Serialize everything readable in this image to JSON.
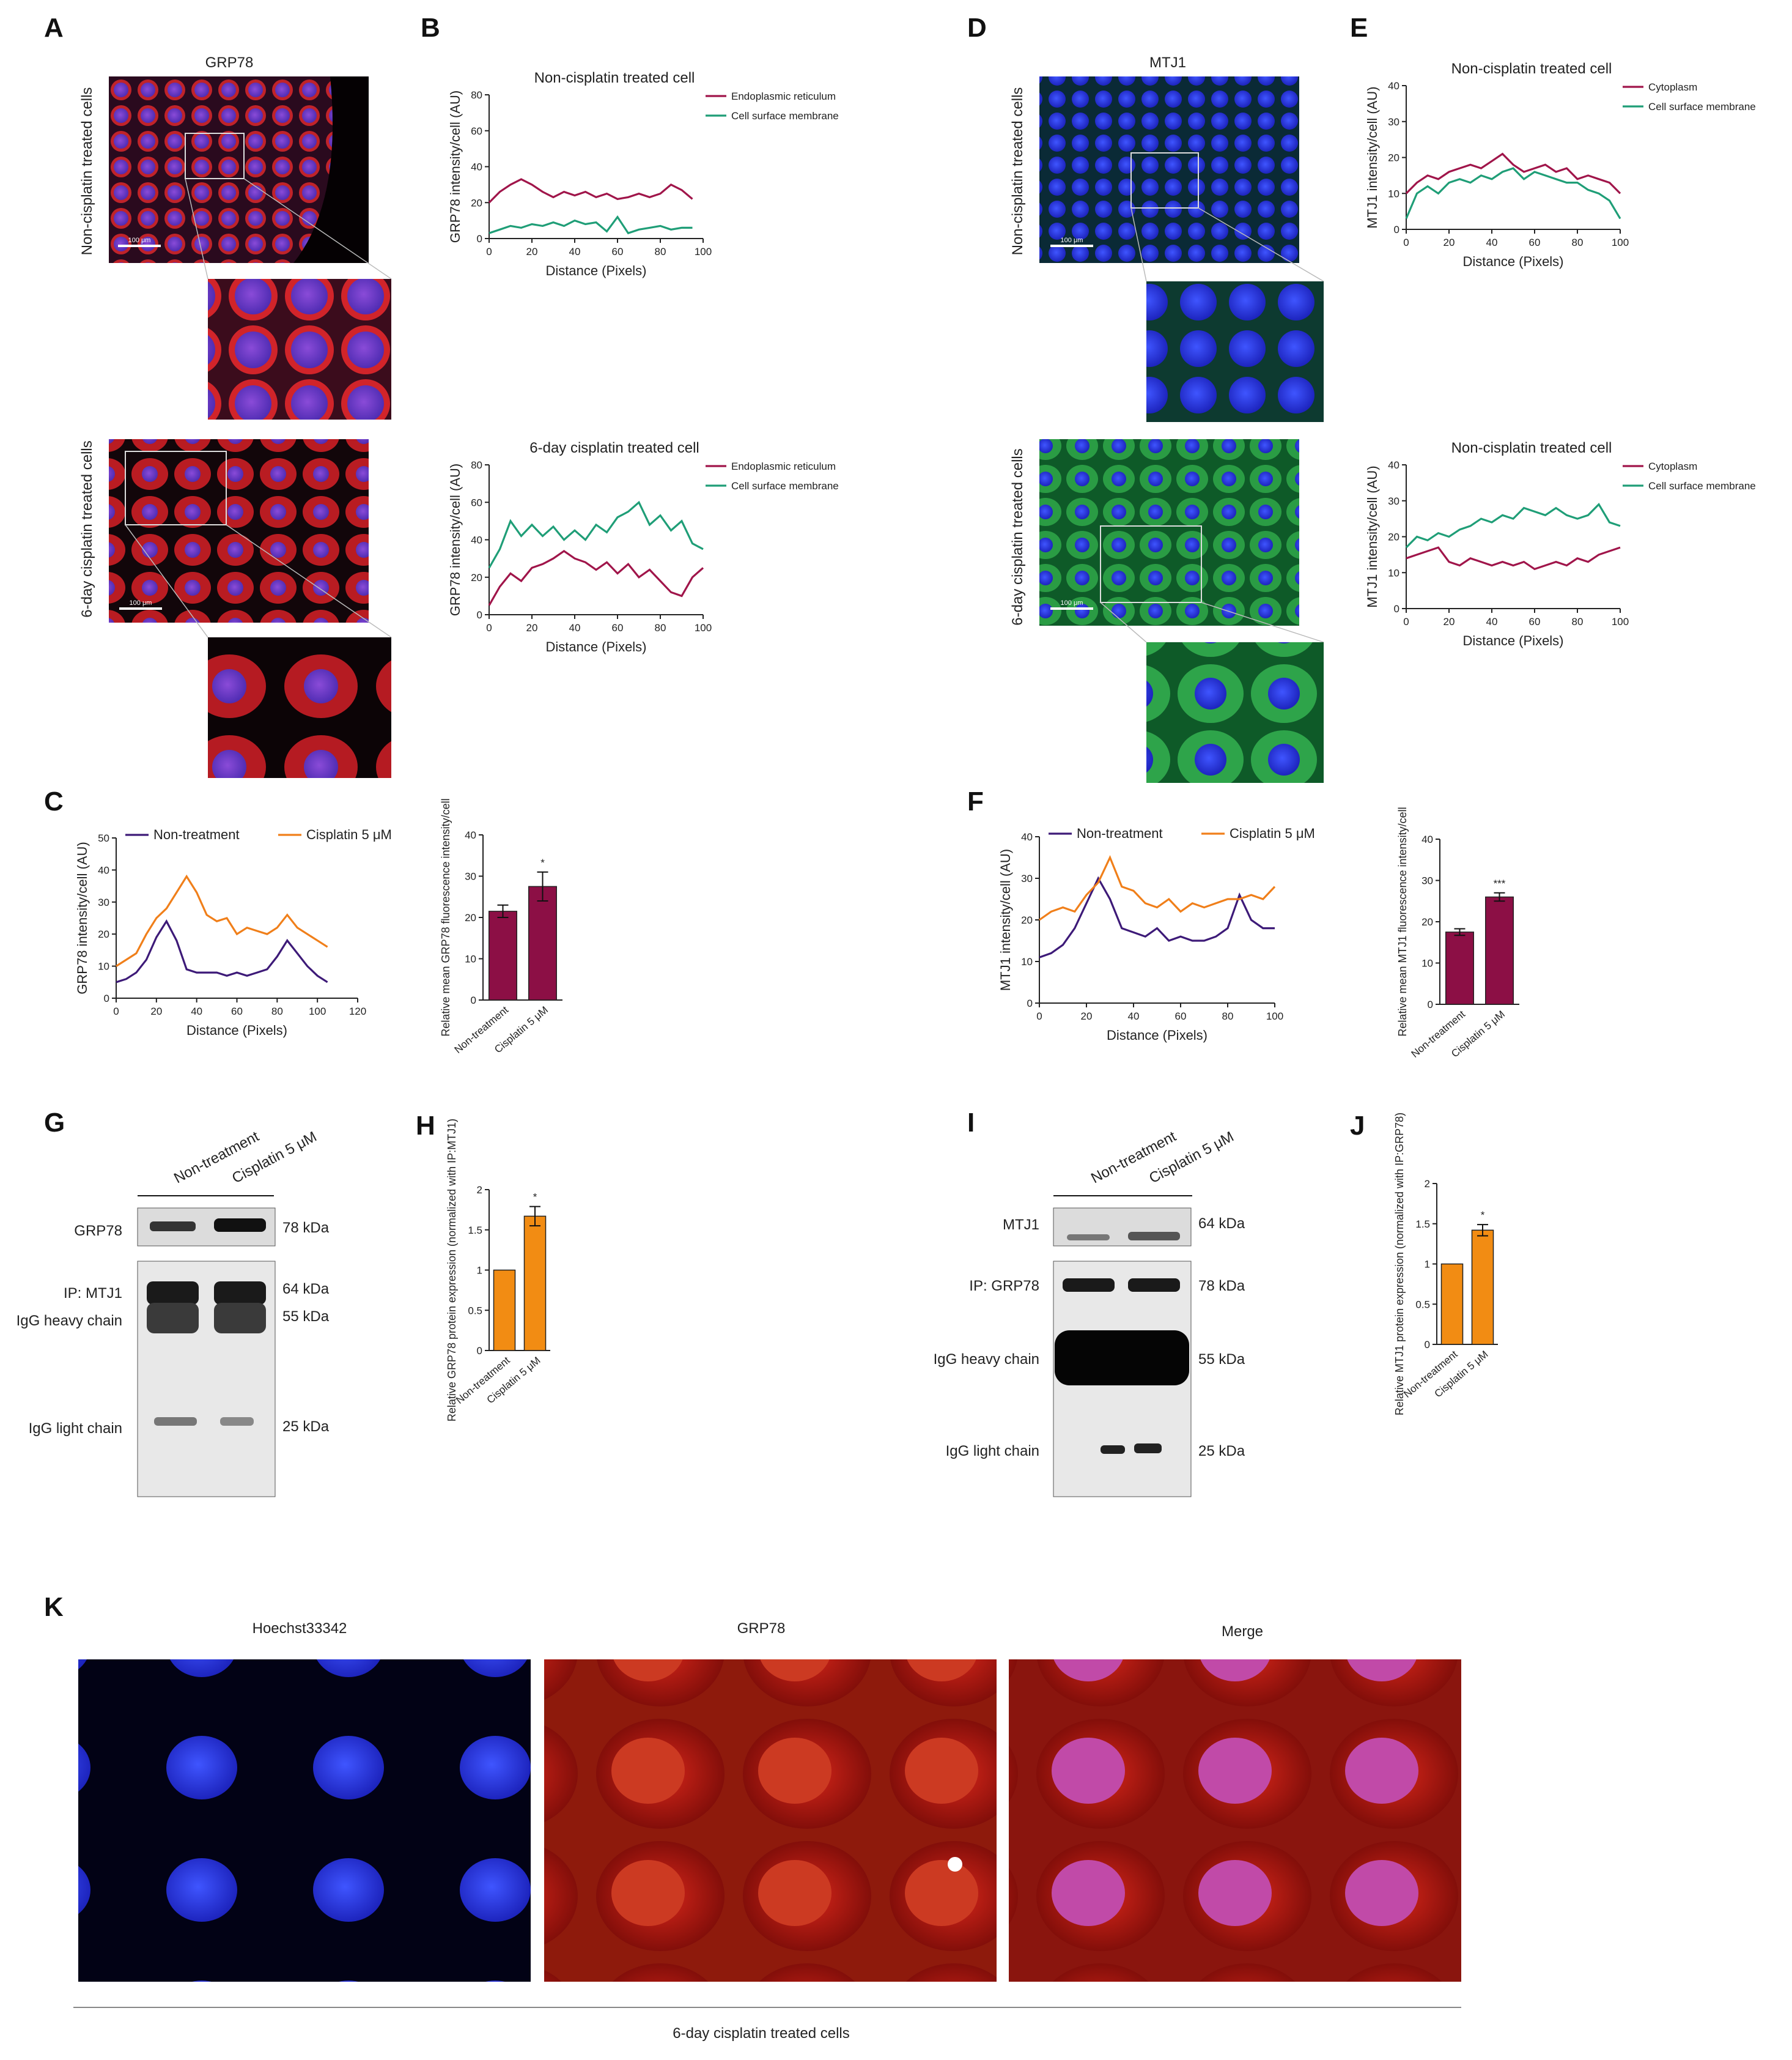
{
  "panel_letters": [
    "A",
    "B",
    "C",
    "D",
    "E",
    "F",
    "G",
    "H",
    "I",
    "J",
    "K"
  ],
  "colors": {
    "crimson": "#a0154a",
    "teal": "#1f9e77",
    "purple": "#3d1a78",
    "orange": "#f07f1a",
    "bar_crimson": "#8c0f45",
    "bar_orange": "#f28c13"
  },
  "panelA": {
    "title": "GRP78",
    "row1": "Non-cisplatin treated cells",
    "row2": "6-day cisplatin treated cells",
    "scalebar": "100 μm"
  },
  "panelD": {
    "title": "MTJ1",
    "row1": "Non-cisplatin treated cells",
    "row2": "6-day cisplatin treated cells",
    "scalebar": "100 μm"
  },
  "panelK": {
    "titles": [
      "Hoechst33342",
      "GRP78",
      "Merge"
    ],
    "caption": "6-day cisplatin treated cells"
  },
  "panelG": {
    "lanes": [
      "Non-treatment",
      "Cisplatin 5 μM"
    ],
    "left_labels": [
      "GRP78",
      "IP: MTJ1",
      "IgG heavy chain",
      "IgG light chain"
    ],
    "right_labels": [
      "78 kDa",
      "64 kDa",
      "55 kDa",
      "25 kDa"
    ]
  },
  "panelI": {
    "lanes": [
      "Non-treatment",
      "Cisplatin 5 μM"
    ],
    "left_labels": [
      "MTJ1",
      "IP: GRP78",
      "IgG heavy chain",
      "IgG light chain"
    ],
    "right_labels": [
      "64 kDa",
      "78 kDa",
      "55 kDa",
      "25 kDa"
    ]
  },
  "chart_data": [
    {
      "id": "B1",
      "type": "line",
      "title": "Non-cisplatin treated cell",
      "xlabel": "Distance (Pixels)",
      "ylabel": "GRP78 intensity/cell (AU)",
      "xlim": [
        0,
        100
      ],
      "ylim": [
        0,
        80
      ],
      "xticks": [
        0,
        20,
        40,
        60,
        80,
        100
      ],
      "yticks": [
        0,
        20,
        40,
        60,
        80
      ],
      "legend": "top-right",
      "series": [
        {
          "name": "Endoplasmic reticulum",
          "color": "#a0154a",
          "x": [
            0,
            5,
            10,
            15,
            20,
            25,
            30,
            35,
            40,
            45,
            50,
            55,
            60,
            65,
            70,
            75,
            80,
            85,
            90,
            95
          ],
          "y": [
            20,
            26,
            30,
            33,
            30,
            26,
            23,
            26,
            24,
            26,
            23,
            25,
            22,
            23,
            25,
            23,
            25,
            30,
            27,
            22
          ]
        },
        {
          "name": "Cell surface membrane",
          "color": "#1f9e77",
          "x": [
            0,
            5,
            10,
            15,
            20,
            25,
            30,
            35,
            40,
            45,
            50,
            55,
            60,
            65,
            70,
            75,
            80,
            85,
            90,
            95
          ],
          "y": [
            3,
            5,
            7,
            6,
            8,
            7,
            9,
            7,
            10,
            8,
            9,
            4,
            12,
            3,
            5,
            6,
            7,
            5,
            6,
            6
          ]
        }
      ]
    },
    {
      "id": "B2",
      "type": "line",
      "title": "6-day cisplatin treated cell",
      "xlabel": "Distance (Pixels)",
      "ylabel": "GRP78 intensity/cell (AU)",
      "xlim": [
        0,
        100
      ],
      "ylim": [
        0,
        80
      ],
      "xticks": [
        0,
        20,
        40,
        60,
        80,
        100
      ],
      "yticks": [
        0,
        20,
        40,
        60,
        80
      ],
      "legend": "top-right",
      "series": [
        {
          "name": "Endoplasmic reticulum",
          "color": "#a0154a",
          "x": [
            0,
            5,
            10,
            15,
            20,
            25,
            30,
            35,
            40,
            45,
            50,
            55,
            60,
            65,
            70,
            75,
            80,
            85,
            90,
            95,
            100
          ],
          "y": [
            5,
            15,
            22,
            18,
            25,
            27,
            30,
            34,
            30,
            28,
            24,
            28,
            22,
            27,
            20,
            24,
            18,
            12,
            10,
            20,
            25
          ]
        },
        {
          "name": "Cell surface membrane",
          "color": "#1f9e77",
          "x": [
            0,
            5,
            10,
            15,
            20,
            25,
            30,
            35,
            40,
            45,
            50,
            55,
            60,
            65,
            70,
            75,
            80,
            85,
            90,
            95,
            100
          ],
          "y": [
            25,
            35,
            50,
            42,
            48,
            42,
            47,
            40,
            45,
            40,
            48,
            44,
            52,
            55,
            60,
            48,
            53,
            45,
            50,
            38,
            35
          ]
        }
      ]
    },
    {
      "id": "C1",
      "type": "line",
      "xlabel": "Distance (Pixels)",
      "ylabel": "GRP78 intensity/cell (AU)",
      "xlim": [
        0,
        120
      ],
      "ylim": [
        0,
        50
      ],
      "xticks": [
        0,
        20,
        40,
        60,
        80,
        100,
        120
      ],
      "yticks": [
        0,
        10,
        20,
        30,
        40,
        50
      ],
      "legend": "top",
      "series": [
        {
          "name": "Non-treatment",
          "color": "#3d1a78",
          "x": [
            0,
            5,
            10,
            15,
            20,
            25,
            30,
            35,
            40,
            45,
            50,
            55,
            60,
            65,
            70,
            75,
            80,
            85,
            90,
            95,
            100,
            105
          ],
          "y": [
            5,
            6,
            8,
            12,
            19,
            24,
            18,
            9,
            8,
            8,
            8,
            7,
            8,
            7,
            8,
            9,
            13,
            18,
            14,
            10,
            7,
            5
          ]
        },
        {
          "name": "Cisplatin 5 μM",
          "color": "#f07f1a",
          "x": [
            0,
            5,
            10,
            15,
            20,
            25,
            30,
            35,
            40,
            45,
            50,
            55,
            60,
            65,
            70,
            75,
            80,
            85,
            90,
            95,
            100,
            105
          ],
          "y": [
            10,
            12,
            14,
            20,
            25,
            28,
            33,
            38,
            33,
            26,
            24,
            25,
            20,
            22,
            21,
            20,
            22,
            26,
            22,
            20,
            18,
            16
          ]
        }
      ]
    },
    {
      "id": "C2",
      "type": "bar",
      "ylabel": "Relative mean GRP78 fluorescence intensity/cell",
      "categories": [
        "Non-treatment",
        "Cisplatin 5 μM"
      ],
      "values": [
        21.5,
        27.5
      ],
      "errors": [
        1.5,
        3.5
      ],
      "significance": [
        "",
        "*"
      ],
      "ylim": [
        0,
        40
      ],
      "yticks": [
        0,
        10,
        20,
        30,
        40
      ],
      "color": "#8c0f45"
    },
    {
      "id": "E1",
      "type": "line",
      "title": "Non-cisplatin treated cell",
      "xlabel": "Distance (Pixels)",
      "ylabel": "MTJ1 intensity/cell (AU)",
      "xlim": [
        0,
        100
      ],
      "ylim": [
        0,
        40
      ],
      "xticks": [
        0,
        20,
        40,
        60,
        80,
        100
      ],
      "yticks": [
        0,
        10,
        20,
        30,
        40
      ],
      "legend": "top-right",
      "series": [
        {
          "name": "Cytoplasm",
          "color": "#a0154a",
          "x": [
            0,
            5,
            10,
            15,
            20,
            25,
            30,
            35,
            40,
            45,
            50,
            55,
            60,
            65,
            70,
            75,
            80,
            85,
            90,
            95,
            100
          ],
          "y": [
            10,
            13,
            15,
            14,
            16,
            17,
            18,
            17,
            19,
            21,
            18,
            16,
            17,
            18,
            16,
            17,
            14,
            15,
            14,
            13,
            10
          ]
        },
        {
          "name": "Cell surface membrane",
          "color": "#1f9e77",
          "x": [
            0,
            5,
            10,
            15,
            20,
            25,
            30,
            35,
            40,
            45,
            50,
            55,
            60,
            65,
            70,
            75,
            80,
            85,
            90,
            95,
            100
          ],
          "y": [
            3,
            10,
            12,
            10,
            13,
            14,
            13,
            15,
            14,
            16,
            17,
            14,
            16,
            15,
            14,
            13,
            13,
            11,
            10,
            8,
            3
          ]
        }
      ]
    },
    {
      "id": "E2",
      "type": "line",
      "title": "Non-cisplatin treated cell",
      "xlabel": "Distance (Pixels)",
      "ylabel": "MTJ1 intensity/cell (AU)",
      "xlim": [
        0,
        100
      ],
      "ylim": [
        0,
        40
      ],
      "xticks": [
        0,
        20,
        40,
        60,
        80,
        100
      ],
      "yticks": [
        0,
        10,
        20,
        30,
        40
      ],
      "legend": "top-right",
      "series": [
        {
          "name": "Cytoplasm",
          "color": "#a0154a",
          "x": [
            0,
            5,
            10,
            15,
            20,
            25,
            30,
            35,
            40,
            45,
            50,
            55,
            60,
            65,
            70,
            75,
            80,
            85,
            90,
            95,
            100
          ],
          "y": [
            14,
            15,
            16,
            17,
            13,
            12,
            14,
            13,
            12,
            13,
            12,
            13,
            11,
            12,
            13,
            12,
            14,
            13,
            15,
            16,
            17
          ]
        },
        {
          "name": "Cell surface membrane",
          "color": "#1f9e77",
          "x": [
            0,
            5,
            10,
            15,
            20,
            25,
            30,
            35,
            40,
            45,
            50,
            55,
            60,
            65,
            70,
            75,
            80,
            85,
            90,
            95,
            100
          ],
          "y": [
            17,
            20,
            19,
            21,
            20,
            22,
            23,
            25,
            24,
            26,
            25,
            28,
            27,
            26,
            28,
            26,
            25,
            26,
            29,
            24,
            23
          ]
        }
      ]
    },
    {
      "id": "F1",
      "type": "line",
      "xlabel": "Distance (Pixels)",
      "ylabel": "MTJ1 intensity/cell (AU)",
      "xlim": [
        0,
        100
      ],
      "ylim": [
        0,
        40
      ],
      "xticks": [
        0,
        20,
        40,
        60,
        80,
        100
      ],
      "yticks": [
        0,
        10,
        20,
        30,
        40
      ],
      "legend": "top",
      "series": [
        {
          "name": "Non-treatment",
          "color": "#3d1a78",
          "x": [
            0,
            5,
            10,
            15,
            20,
            25,
            30,
            35,
            40,
            45,
            50,
            55,
            60,
            65,
            70,
            75,
            80,
            85,
            90,
            95,
            100
          ],
          "y": [
            11,
            12,
            14,
            18,
            24,
            30,
            25,
            18,
            17,
            16,
            18,
            15,
            16,
            15,
            15,
            16,
            18,
            26,
            20,
            18,
            18
          ]
        },
        {
          "name": "Cisplatin 5 μM",
          "color": "#f07f1a",
          "x": [
            0,
            5,
            10,
            15,
            20,
            25,
            30,
            35,
            40,
            45,
            50,
            55,
            60,
            65,
            70,
            75,
            80,
            85,
            90,
            95,
            100
          ],
          "y": [
            20,
            22,
            23,
            22,
            26,
            29,
            35,
            28,
            27,
            24,
            23,
            25,
            22,
            24,
            23,
            24,
            25,
            25,
            26,
            25,
            28
          ]
        }
      ]
    },
    {
      "id": "F2",
      "type": "bar",
      "ylabel": "Relative mean MTJ1 fluorescence intensity/cell",
      "categories": [
        "Non-treatment",
        "Cisplatin 5 μM"
      ],
      "values": [
        17.5,
        26
      ],
      "errors": [
        0.8,
        1.0
      ],
      "significance": [
        "",
        "***"
      ],
      "ylim": [
        0,
        40
      ],
      "yticks": [
        0,
        10,
        20,
        30,
        40
      ],
      "color": "#8c0f45"
    },
    {
      "id": "H",
      "type": "bar",
      "ylabel": "Relative GRP78 protein expression (normalized with IP:MTJ1)",
      "categories": [
        "Non-treatment",
        "Cisplatin 5 μM"
      ],
      "values": [
        1.0,
        1.67
      ],
      "errors": [
        0,
        0.12
      ],
      "significance": [
        "",
        "*"
      ],
      "ylim": [
        0,
        2.0
      ],
      "yticks": [
        0,
        0.5,
        1.0,
        1.5,
        2.0
      ],
      "color": "#f28c13"
    },
    {
      "id": "J",
      "type": "bar",
      "ylabel": "Relative MTJ1 protein expression (normalized with IP:GRP78)",
      "categories": [
        "Non-treatment",
        "Cisplatin 5 μM"
      ],
      "values": [
        1.0,
        1.42
      ],
      "errors": [
        0,
        0.07
      ],
      "significance": [
        "",
        "*"
      ],
      "ylim": [
        0,
        2.0
      ],
      "yticks": [
        0,
        0.5,
        1.0,
        1.5,
        2.0
      ],
      "color": "#f28c13"
    }
  ]
}
